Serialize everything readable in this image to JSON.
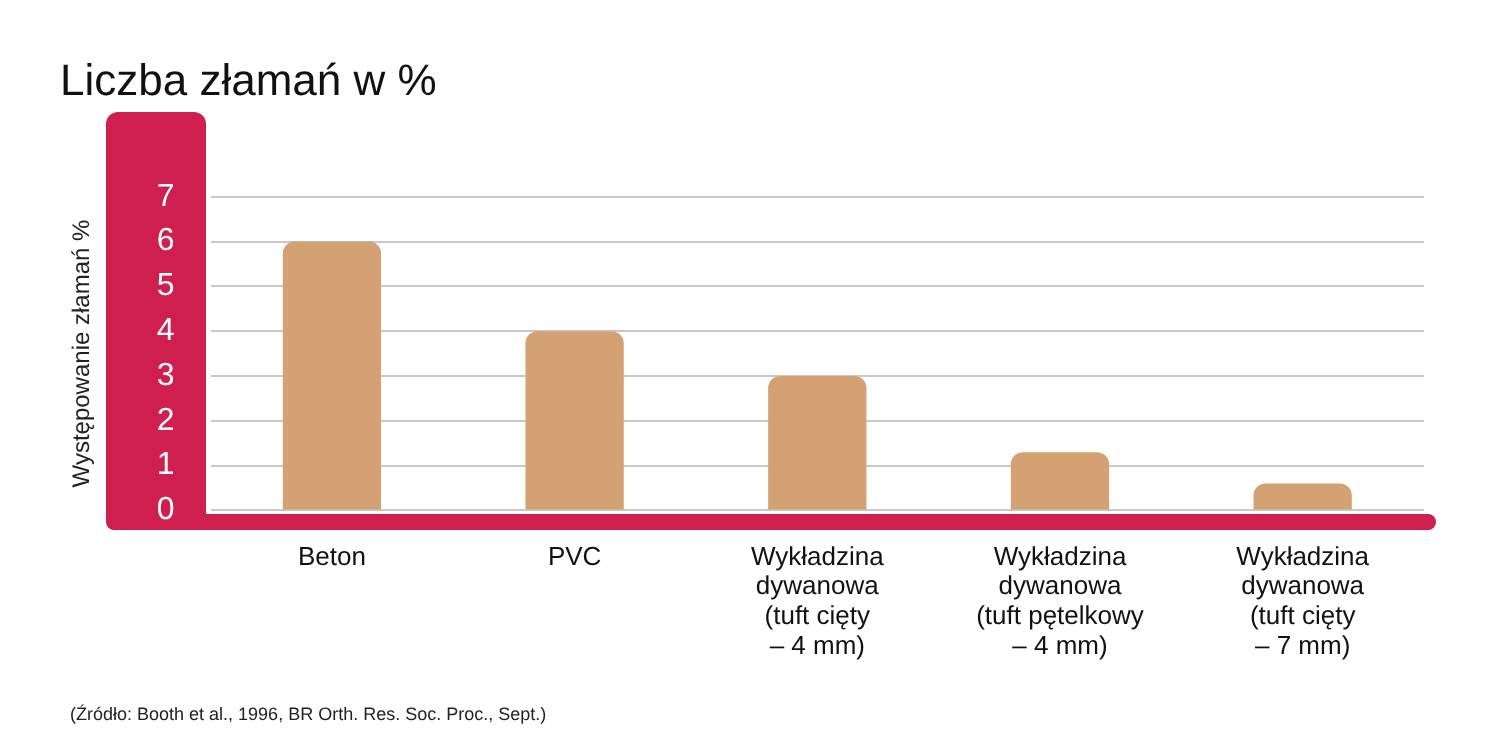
{
  "chart_data": {
    "type": "bar",
    "title": "Liczba złamań w %",
    "ylabel": "Występowanie złamań %",
    "categories": [
      "Beton",
      "PVC",
      "Wykładzina\ndywanowa\n(tuft cięty\n– 4 mm)",
      "Wykładzina\ndywanowa\n(tuft pętelkowy\n– 4 mm)",
      "Wykładzina\ndywanowa\n(tuft cięty\n– 7 mm)"
    ],
    "values": [
      6,
      4,
      3,
      1.3,
      0.6
    ],
    "color": "#d4a272",
    "ylim": [
      0,
      7
    ],
    "yticks": [
      0,
      1,
      2,
      3,
      4,
      5,
      6,
      7
    ],
    "grid": "y",
    "annotations": [
      "(Źródło: Booth et al., 1996, BR Orth. Res. Soc. Proc., Sept.)"
    ]
  }
}
